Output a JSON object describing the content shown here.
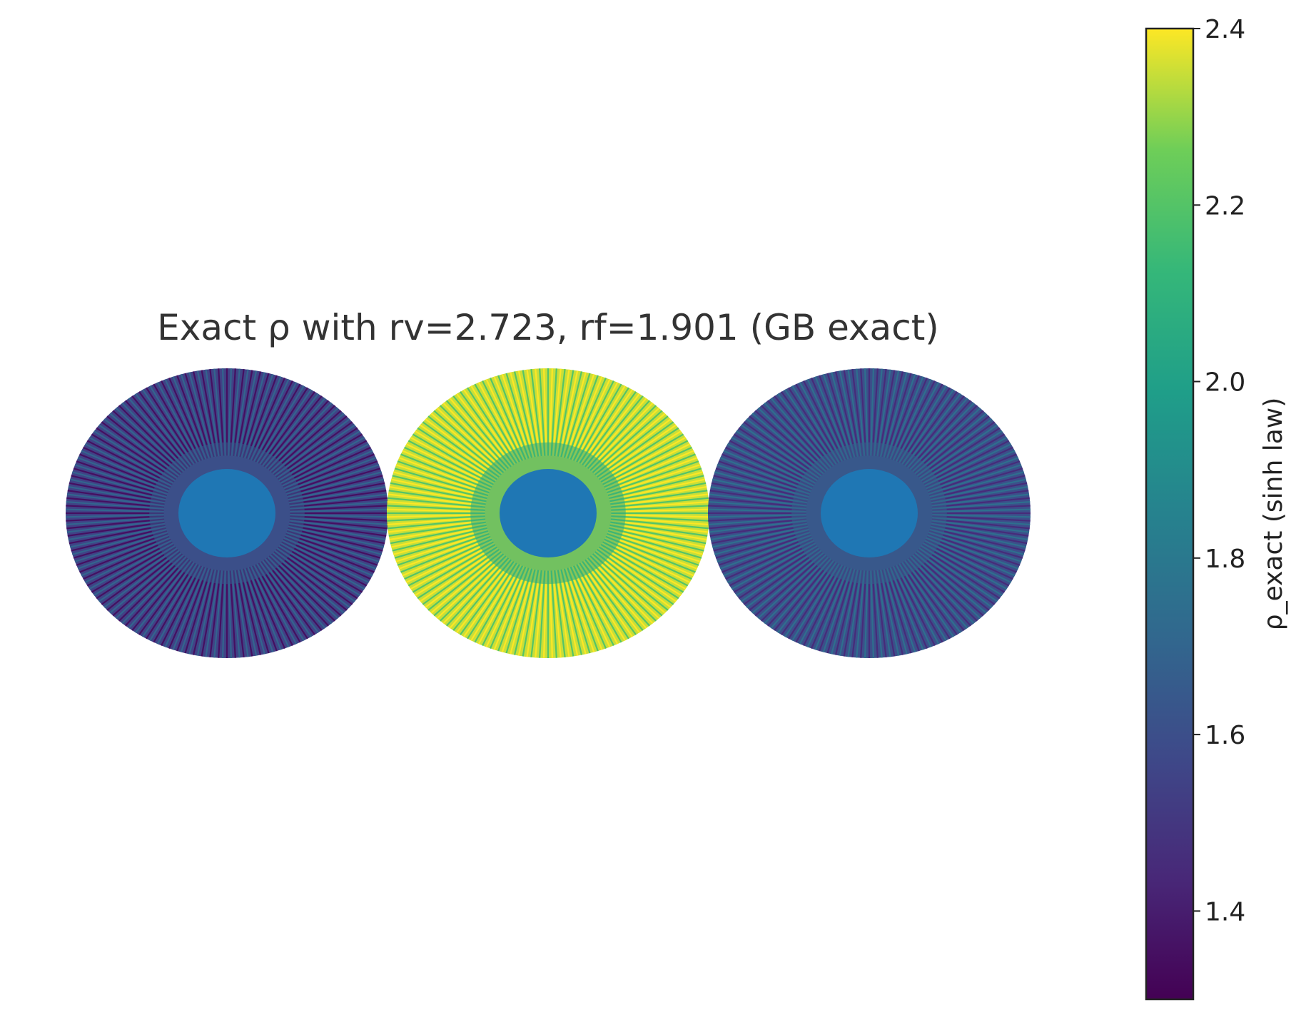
{
  "chart_data": {
    "type": "heatmap",
    "title": "Exact ρ with rv=2.723, rf=1.901  (GB exact)",
    "colormap": "viridis",
    "colorbar": {
      "label": "ρ_exact (sinh law)",
      "range": [
        1.3,
        2.4
      ],
      "ticks": [
        1.4,
        1.6,
        1.8,
        2.0,
        2.2,
        2.4
      ],
      "tick_labels": [
        "1.4",
        "1.6",
        "1.8",
        "2.0",
        "2.2",
        "2.4"
      ]
    },
    "panels": [
      {
        "name": "left disk",
        "outer_value_min": 1.35,
        "outer_value_max": 1.7,
        "inner_value": 1.75,
        "dominant_value": 1.55
      },
      {
        "name": "center disk",
        "outer_value_min": 2.2,
        "outer_value_max": 2.4,
        "inner_value": 1.75,
        "dominant_value": 2.35
      },
      {
        "name": "right disk",
        "outer_value_min": 1.45,
        "outer_value_max": 1.75,
        "inner_value": 1.75,
        "dominant_value": 1.6
      }
    ],
    "grid": false,
    "axes_visible": false
  }
}
